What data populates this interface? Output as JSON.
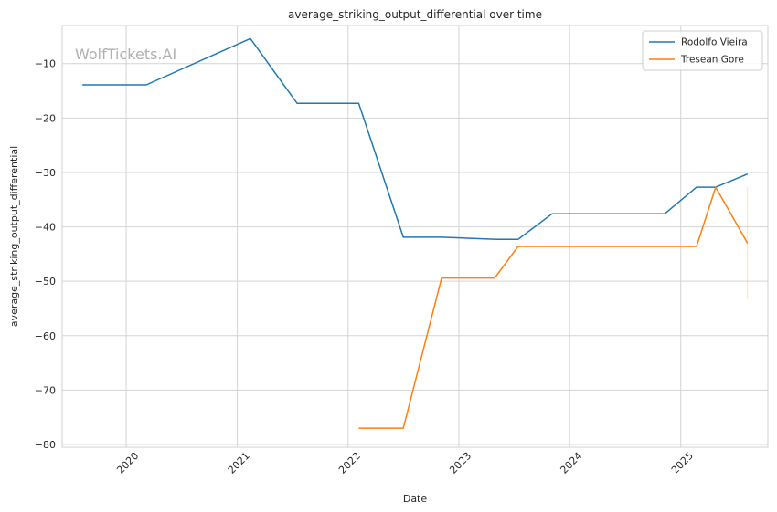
{
  "watermark": "WolfTickets.AI",
  "chart_data": {
    "type": "line",
    "title": "average_striking_output_differential over time",
    "xlabel": "Date",
    "ylabel": "average_striking_output_differential",
    "x_ticks": [
      "2020",
      "2021",
      "2022",
      "2023",
      "2024",
      "2025"
    ],
    "y_ticks": [
      -10,
      -20,
      -30,
      -40,
      -50,
      -60,
      -70,
      -80
    ],
    "xlim": [
      "2019-06-04",
      "2025-10-15"
    ],
    "ylim": [
      -80.5,
      -3
    ],
    "grid": true,
    "legend_position": "top-right",
    "series": [
      {
        "name": "Rodolfo Vieira",
        "color": "#1f77b4",
        "points": [
          [
            "2019-08-10",
            -13.9
          ],
          [
            "2020-03-07",
            -13.9
          ],
          [
            "2021-02-13",
            -5.4
          ],
          [
            "2021-07-17",
            -17.3
          ],
          [
            "2022-02-05",
            -17.3
          ],
          [
            "2022-07-02",
            -41.9
          ],
          [
            "2022-11-05",
            -41.9
          ],
          [
            "2023-05-06",
            -42.3
          ],
          [
            "2023-07-15",
            -42.3
          ],
          [
            "2023-11-04",
            -37.6
          ],
          [
            "2024-11-09",
            -37.6
          ],
          [
            "2025-02-22",
            -32.7
          ],
          [
            "2025-04-26",
            -32.7
          ],
          [
            "2025-08-09",
            -30.3
          ]
        ]
      },
      {
        "name": "Tresean Gore",
        "color": "#ff7f0e",
        "points": [
          [
            "2022-02-05",
            -77.0
          ],
          [
            "2022-07-02",
            -77.0
          ],
          [
            "2022-11-05",
            -49.4
          ],
          [
            "2023-04-29",
            -49.4
          ],
          [
            "2023-07-15",
            -43.6
          ],
          [
            "2025-02-22",
            -43.6
          ],
          [
            "2025-04-26",
            -32.7
          ],
          [
            "2025-08-09",
            -43.0
          ]
        ],
        "error_bar": {
          "x": "2025-08-09",
          "low": -53.3,
          "high": -32.7
        }
      }
    ]
  }
}
